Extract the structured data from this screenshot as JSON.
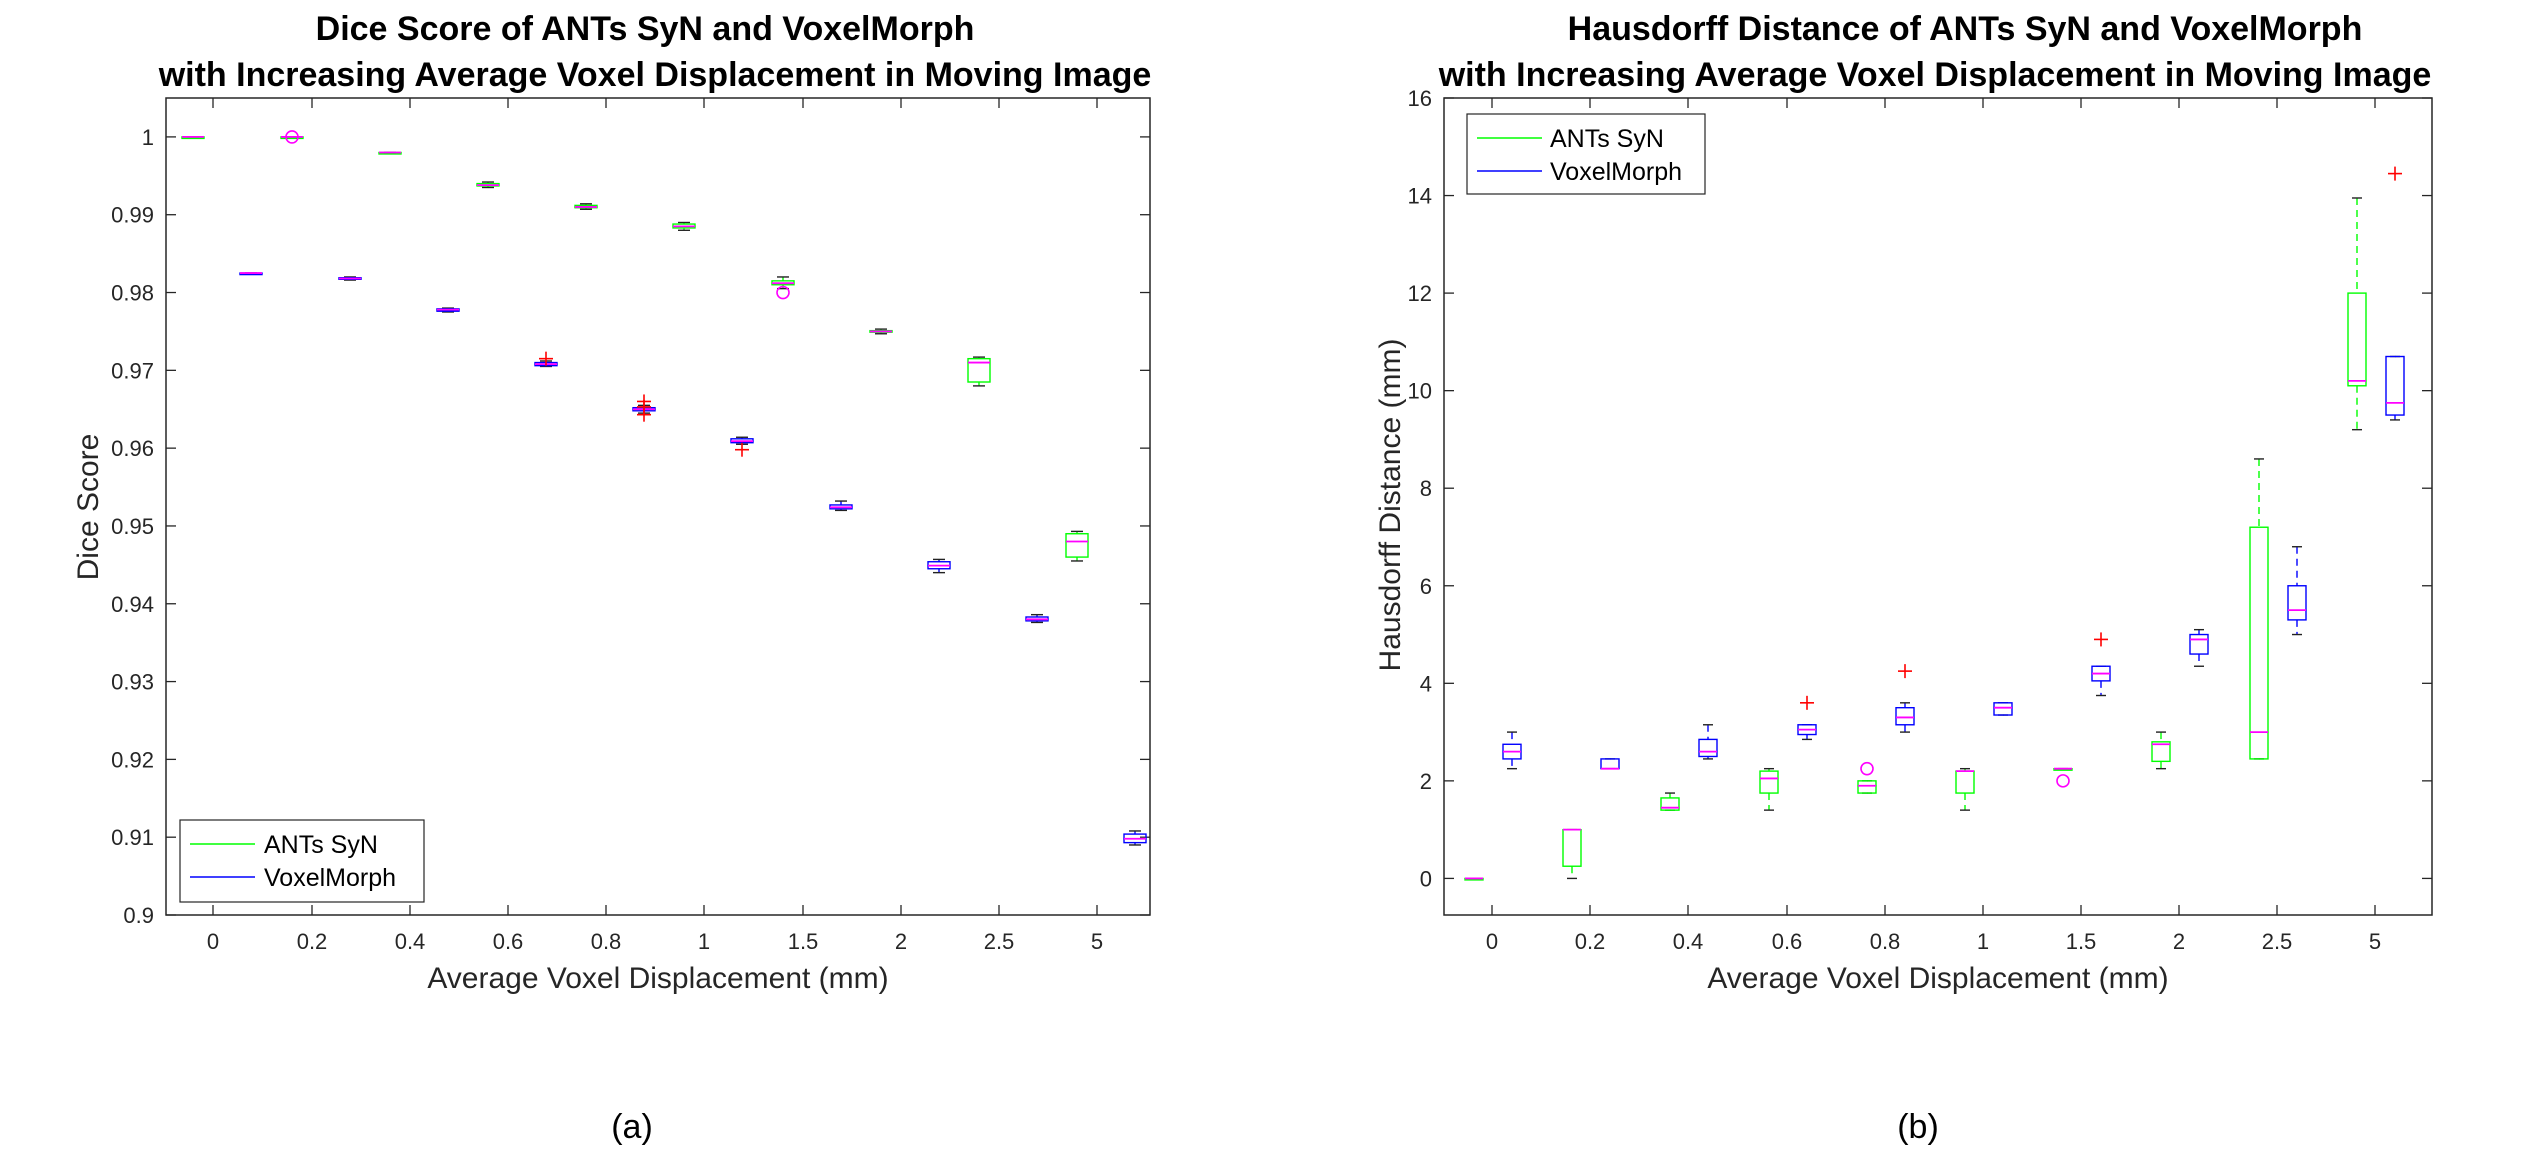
{
  "captions": [
    "(a)",
    "(b)"
  ],
  "chart_data": [
    {
      "type": "box",
      "title": "Dice Score of ANTs SyN and VoxelMorph",
      "subtitle": "with Increasing Average Voxel Displacement in Moving Image",
      "xlabel": "Average Voxel Displacement (mm)",
      "ylabel": "Dice Score",
      "categories": [
        "0",
        "0.2",
        "0.4",
        "0.6",
        "0.8",
        "1",
        "1.5",
        "2",
        "2.5",
        "5"
      ],
      "ylim": [
        0.9,
        1.005
      ],
      "y_ticks": [
        0.9,
        0.91,
        0.92,
        0.93,
        0.94,
        0.95,
        0.96,
        0.97,
        0.98,
        0.99,
        1
      ],
      "y_tick_labels": [
        "0.9",
        "0.91",
        "0.92",
        "0.93",
        "0.94",
        "0.95",
        "0.96",
        "0.97",
        "0.98",
        "0.99",
        "1"
      ],
      "legend_location": "bottom-left",
      "series": [
        {
          "name": "ANTs SyN",
          "color": "#00ff00",
          "boxes": [
            {
              "category": "0",
              "whisker_low": 1.0,
              "q1": 1.0,
              "median": 1.0,
              "q3": 1.0,
              "whisker_high": 1.0,
              "outliers": [],
              "outlier_symbol": "plus"
            },
            {
              "category": "0.2",
              "whisker_low": 1.0,
              "q1": 1.0,
              "median": 1.0,
              "q3": 1.0,
              "whisker_high": 1.0,
              "outliers": [
                1.0
              ],
              "outlier_symbol": "circle"
            },
            {
              "category": "0.4",
              "whisker_low": 0.998,
              "q1": 0.998,
              "median": 0.998,
              "q3": 0.998,
              "whisker_high": 0.998,
              "outliers": [],
              "outlier_symbol": "plus"
            },
            {
              "category": "0.6",
              "whisker_low": 0.9935,
              "q1": 0.9937,
              "median": 0.9938,
              "q3": 0.994,
              "whisker_high": 0.9942,
              "outliers": [],
              "outlier_symbol": "plus"
            },
            {
              "category": "0.8",
              "whisker_low": 0.9907,
              "q1": 0.9909,
              "median": 0.991,
              "q3": 0.9912,
              "whisker_high": 0.9914,
              "outliers": [],
              "outlier_symbol": "plus"
            },
            {
              "category": "1",
              "whisker_low": 0.988,
              "q1": 0.9883,
              "median": 0.9885,
              "q3": 0.9888,
              "whisker_high": 0.989,
              "outliers": [],
              "outlier_symbol": "plus"
            },
            {
              "category": "1.5",
              "whisker_low": 0.9805,
              "q1": 0.981,
              "median": 0.9812,
              "q3": 0.9815,
              "whisker_high": 0.982,
              "outliers": [
                0.98
              ],
              "outlier_symbol": "circle"
            },
            {
              "category": "2",
              "whisker_low": 0.9747,
              "q1": 0.9749,
              "median": 0.975,
              "q3": 0.9751,
              "whisker_high": 0.9753,
              "outliers": [],
              "outlier_symbol": "plus"
            },
            {
              "category": "2.5",
              "whisker_low": 0.968,
              "q1": 0.9685,
              "median": 0.971,
              "q3": 0.9715,
              "whisker_high": 0.9717,
              "outliers": [],
              "outlier_symbol": "plus"
            },
            {
              "category": "5",
              "whisker_low": 0.9455,
              "q1": 0.946,
              "median": 0.948,
              "q3": 0.949,
              "whisker_high": 0.9493,
              "outliers": [],
              "outlier_symbol": "plus"
            }
          ]
        },
        {
          "name": "VoxelMorph",
          "color": "#0000ff",
          "boxes": [
            {
              "category": "0",
              "whisker_low": 0.9825,
              "q1": 0.9825,
              "median": 0.9825,
              "q3": 0.9825,
              "whisker_high": 0.9825,
              "outliers": [],
              "outlier_symbol": "plus"
            },
            {
              "category": "0.2",
              "whisker_low": 0.9816,
              "q1": 0.9817,
              "median": 0.9818,
              "q3": 0.9819,
              "whisker_high": 0.982,
              "outliers": [],
              "outlier_symbol": "plus"
            },
            {
              "category": "0.4",
              "whisker_low": 0.9775,
              "q1": 0.9776,
              "median": 0.9778,
              "q3": 0.9779,
              "whisker_high": 0.978,
              "outliers": [],
              "outlier_symbol": "plus"
            },
            {
              "category": "0.6",
              "whisker_low": 0.9705,
              "q1": 0.9706,
              "median": 0.9708,
              "q3": 0.971,
              "whisker_high": 0.9712,
              "outliers": [
                0.9715
              ],
              "outlier_symbol": "plus"
            },
            {
              "category": "0.8",
              "whisker_low": 0.9645,
              "q1": 0.9648,
              "median": 0.965,
              "q3": 0.9652,
              "whisker_high": 0.9655,
              "outliers": [
                0.9643,
                0.9653,
                0.966
              ],
              "outlier_symbol": "plus"
            },
            {
              "category": "1",
              "whisker_low": 0.9605,
              "q1": 0.9607,
              "median": 0.9609,
              "q3": 0.9612,
              "whisker_high": 0.9614,
              "outliers": [
                0.9598
              ],
              "outlier_symbol": "plus"
            },
            {
              "category": "1.5",
              "whisker_low": 0.952,
              "q1": 0.9522,
              "median": 0.9524,
              "q3": 0.9527,
              "whisker_high": 0.9532,
              "outliers": [],
              "outlier_symbol": "plus"
            },
            {
              "category": "2",
              "whisker_low": 0.944,
              "q1": 0.9445,
              "median": 0.9449,
              "q3": 0.9454,
              "whisker_high": 0.9457,
              "outliers": [],
              "outlier_symbol": "plus"
            },
            {
              "category": "2.5",
              "whisker_low": 0.9376,
              "q1": 0.9378,
              "median": 0.938,
              "q3": 0.9383,
              "whisker_high": 0.9386,
              "outliers": [],
              "outlier_symbol": "plus"
            },
            {
              "category": "5",
              "whisker_low": 0.909,
              "q1": 0.9093,
              "median": 0.9098,
              "q3": 0.9104,
              "whisker_high": 0.9108,
              "outliers": [],
              "outlier_symbol": "plus"
            }
          ]
        }
      ]
    },
    {
      "type": "box",
      "title": "Hausdorff Distance of ANTs SyN and VoxelMorph",
      "subtitle": "with Increasing Average Voxel Displacement in Moving Image",
      "xlabel": "Average Voxel Displacement (mm)",
      "ylabel": "Hausdorff Distance (mm)",
      "categories": [
        "0",
        "0.2",
        "0.4",
        "0.6",
        "0.8",
        "1",
        "1.5",
        "2",
        "2.5",
        "5"
      ],
      "ylim": [
        -0.75,
        16
      ],
      "y_ticks": [
        0,
        2,
        4,
        6,
        8,
        10,
        12,
        14,
        16
      ],
      "y_tick_labels": [
        "0",
        "2",
        "4",
        "6",
        "8",
        "10",
        "12",
        "14",
        "16"
      ],
      "legend_location": "top-left",
      "series": [
        {
          "name": "ANTs SyN",
          "color": "#00ff00",
          "boxes": [
            {
              "category": "0",
              "whisker_low": 0,
              "q1": 0,
              "median": 0,
              "q3": 0,
              "whisker_high": 0,
              "outliers": [],
              "outlier_symbol": "plus"
            },
            {
              "category": "0.2",
              "whisker_low": 0,
              "q1": 0.25,
              "median": 1.0,
              "q3": 1.0,
              "whisker_high": 1.0,
              "outliers": [],
              "outlier_symbol": "plus"
            },
            {
              "category": "0.4",
              "whisker_low": 1.4,
              "q1": 1.4,
              "median": 1.45,
              "q3": 1.65,
              "whisker_high": 1.75,
              "outliers": [],
              "outlier_symbol": "plus"
            },
            {
              "category": "0.6",
              "whisker_low": 1.4,
              "q1": 1.75,
              "median": 2.05,
              "q3": 2.2,
              "whisker_high": 2.25,
              "outliers": [],
              "outlier_symbol": "plus"
            },
            {
              "category": "0.8",
              "whisker_low": 1.75,
              "q1": 1.75,
              "median": 1.9,
              "q3": 2.0,
              "whisker_high": 2.0,
              "outliers": [
                2.25
              ],
              "outlier_symbol": "circle"
            },
            {
              "category": "1",
              "whisker_low": 1.4,
              "q1": 1.75,
              "median": 2.2,
              "q3": 2.2,
              "whisker_high": 2.25,
              "outliers": [],
              "outlier_symbol": "plus"
            },
            {
              "category": "1.5",
              "whisker_low": 2.25,
              "q1": 2.25,
              "median": 2.25,
              "q3": 2.25,
              "whisker_high": 2.25,
              "outliers": [
                2.0
              ],
              "outlier_symbol": "circle"
            },
            {
              "category": "2",
              "whisker_low": 2.25,
              "q1": 2.4,
              "median": 2.75,
              "q3": 2.8,
              "whisker_high": 3.0,
              "outliers": [],
              "outlier_symbol": "plus"
            },
            {
              "category": "2.5",
              "whisker_low": 2.45,
              "q1": 2.45,
              "median": 3.0,
              "q3": 7.2,
              "whisker_high": 8.6,
              "outliers": [],
              "outlier_symbol": "plus"
            },
            {
              "category": "5",
              "whisker_low": 9.2,
              "q1": 10.1,
              "median": 10.2,
              "q3": 12.0,
              "whisker_high": 13.95,
              "outliers": [],
              "outlier_symbol": "plus"
            }
          ]
        },
        {
          "name": "VoxelMorph",
          "color": "#0000ff",
          "boxes": [
            {
              "category": "0",
              "whisker_low": 2.25,
              "q1": 2.45,
              "median": 2.6,
              "q3": 2.75,
              "whisker_high": 3.0,
              "outliers": [],
              "outlier_symbol": "plus"
            },
            {
              "category": "0.2",
              "whisker_low": 2.25,
              "q1": 2.25,
              "median": 2.25,
              "q3": 2.45,
              "whisker_high": 2.45,
              "outliers": [],
              "outlier_symbol": "plus"
            },
            {
              "category": "0.4",
              "whisker_low": 2.45,
              "q1": 2.5,
              "median": 2.6,
              "q3": 2.85,
              "whisker_high": 3.15,
              "outliers": [],
              "outlier_symbol": "plus"
            },
            {
              "category": "0.6",
              "whisker_low": 2.85,
              "q1": 2.95,
              "median": 3.05,
              "q3": 3.15,
              "whisker_high": 3.15,
              "outliers": [
                3.6
              ],
              "outlier_symbol": "plus"
            },
            {
              "category": "0.8",
              "whisker_low": 3.0,
              "q1": 3.15,
              "median": 3.3,
              "q3": 3.5,
              "whisker_high": 3.6,
              "outliers": [
                4.25
              ],
              "outlier_symbol": "plus"
            },
            {
              "category": "1",
              "whisker_low": 3.35,
              "q1": 3.35,
              "median": 3.5,
              "q3": 3.6,
              "whisker_high": 3.6,
              "outliers": [],
              "outlier_symbol": "plus"
            },
            {
              "category": "1.5",
              "whisker_low": 3.75,
              "q1": 4.05,
              "median": 4.2,
              "q3": 4.35,
              "whisker_high": 4.35,
              "outliers": [
                4.9
              ],
              "outlier_symbol": "plus"
            },
            {
              "category": "2",
              "whisker_low": 4.35,
              "q1": 4.6,
              "median": 4.9,
              "q3": 5.0,
              "whisker_high": 5.1,
              "outliers": [],
              "outlier_symbol": "plus"
            },
            {
              "category": "2.5",
              "whisker_low": 5.0,
              "q1": 5.3,
              "median": 5.5,
              "q3": 6.0,
              "whisker_high": 6.8,
              "outliers": [],
              "outlier_symbol": "plus"
            },
            {
              "category": "5",
              "whisker_low": 9.4,
              "q1": 9.5,
              "median": 9.75,
              "q3": 10.7,
              "whisker_high": 10.7,
              "outliers": [
                14.45
              ],
              "outlier_symbol": "plus"
            }
          ]
        }
      ]
    }
  ]
}
